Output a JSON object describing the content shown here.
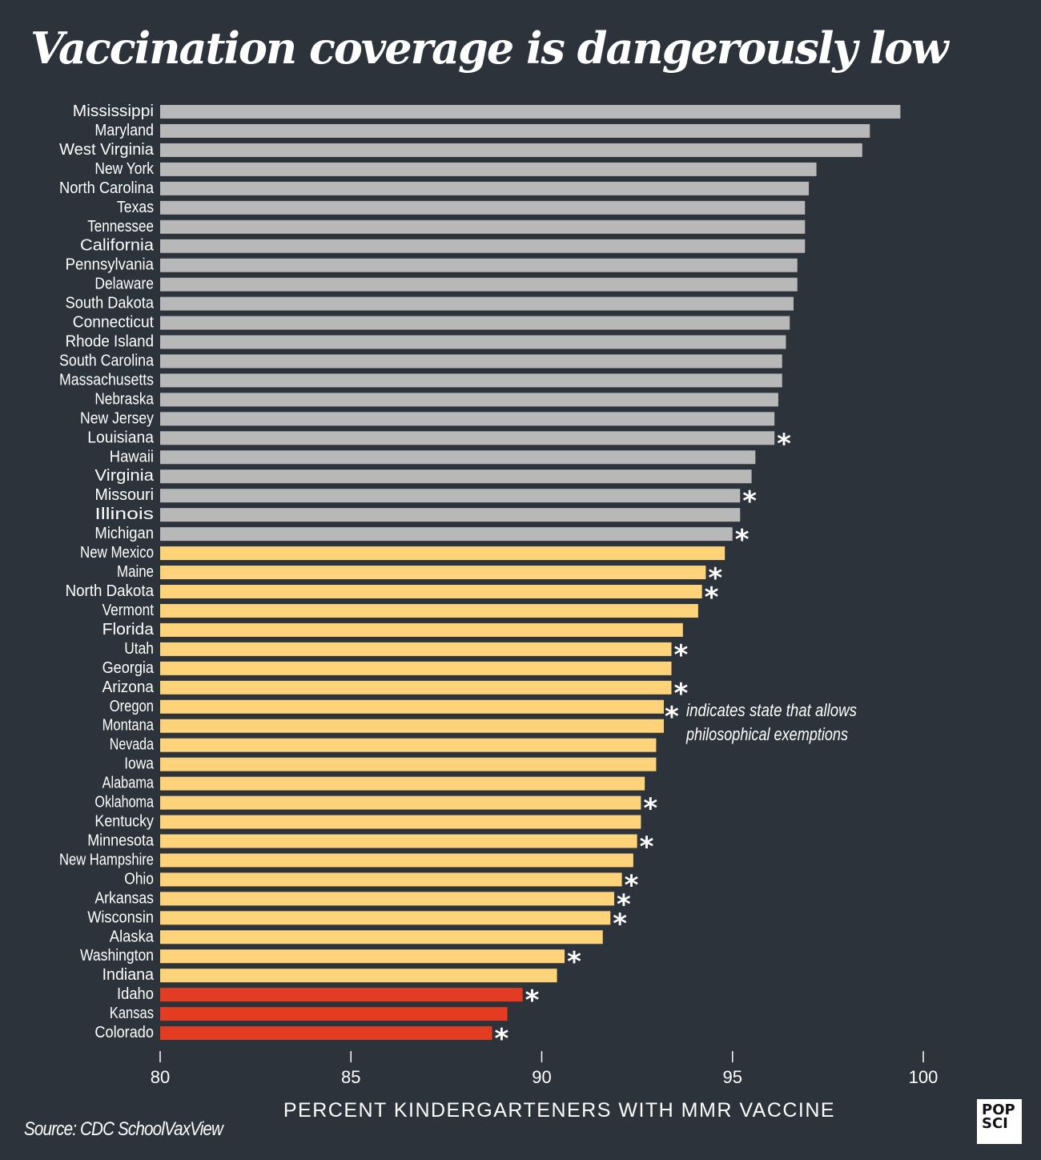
{
  "chart_data": {
    "type": "bar",
    "orientation": "horizontal",
    "title": "Vaccination coverage is dangerously low",
    "xlabel": "PERCENT KINDERGARTENERS WITH MMR VACCINE",
    "xlim": [
      80,
      100
    ],
    "xticks": [
      80,
      85,
      90,
      95,
      100
    ],
    "colors": {
      "high": "#b8b8b8",
      "mid": "#ffd37a",
      "low": "#e23c22",
      "marker": "#ffffff",
      "background": "#2d333b"
    },
    "marker_symbol": "*",
    "annotation": {
      "symbol": "*",
      "lines": [
        "indicates state that allows",
        "philosophical exemptions"
      ]
    },
    "categories": [
      "Mississippi",
      "Maryland",
      "West Virginia",
      "New York",
      "North Carolina",
      "Texas",
      "Tennessee",
      "California",
      "Pennsylvania",
      "Delaware",
      "South Dakota",
      "Connecticut",
      "Rhode Island",
      "South Carolina",
      "Massachusetts",
      "Nebraska",
      "New Jersey",
      "Louisiana",
      "Hawaii",
      "Virginia",
      "Missouri",
      "Illinois",
      "Michigan",
      "New Mexico",
      "Maine",
      "North Dakota",
      "Vermont",
      "Florida",
      "Utah",
      "Georgia",
      "Arizona",
      "Oregon",
      "Montana",
      "Nevada",
      "Iowa",
      "Alabama",
      "Oklahoma",
      "Kentucky",
      "Minnesota",
      "New Hampshire",
      "Ohio",
      "Arkansas",
      "Wisconsin",
      "Alaska",
      "Washington",
      "Indiana",
      "Idaho",
      "Kansas",
      "Colorado"
    ],
    "values": [
      99.4,
      98.6,
      98.4,
      97.2,
      97.0,
      96.9,
      96.9,
      96.9,
      96.7,
      96.7,
      96.6,
      96.5,
      96.4,
      96.3,
      96.3,
      96.2,
      96.1,
      96.1,
      95.6,
      95.5,
      95.2,
      95.2,
      95.0,
      94.8,
      94.3,
      94.2,
      94.1,
      93.7,
      93.4,
      93.4,
      93.4,
      93.2,
      93.2,
      93.0,
      93.0,
      92.7,
      92.6,
      92.6,
      92.5,
      92.4,
      92.1,
      91.9,
      91.8,
      91.6,
      90.6,
      90.4,
      89.5,
      89.1,
      88.7
    ],
    "group": [
      "high",
      "high",
      "high",
      "high",
      "high",
      "high",
      "high",
      "high",
      "high",
      "high",
      "high",
      "high",
      "high",
      "high",
      "high",
      "high",
      "high",
      "high",
      "high",
      "high",
      "high",
      "high",
      "high",
      "mid",
      "mid",
      "mid",
      "mid",
      "mid",
      "mid",
      "mid",
      "mid",
      "mid",
      "mid",
      "mid",
      "mid",
      "mid",
      "mid",
      "mid",
      "mid",
      "mid",
      "mid",
      "mid",
      "mid",
      "mid",
      "mid",
      "mid",
      "low",
      "low",
      "low"
    ],
    "philosophical_exemption": [
      false,
      false,
      false,
      false,
      false,
      false,
      false,
      false,
      false,
      false,
      false,
      false,
      false,
      false,
      false,
      false,
      false,
      true,
      false,
      false,
      true,
      false,
      true,
      false,
      true,
      true,
      false,
      false,
      true,
      false,
      true,
      false,
      false,
      false,
      false,
      false,
      true,
      false,
      true,
      false,
      true,
      true,
      true,
      false,
      true,
      false,
      true,
      false,
      true
    ]
  },
  "source": "Source: CDC SchoolVaxView",
  "logo": {
    "line1": "POP",
    "line2": "SCI"
  }
}
